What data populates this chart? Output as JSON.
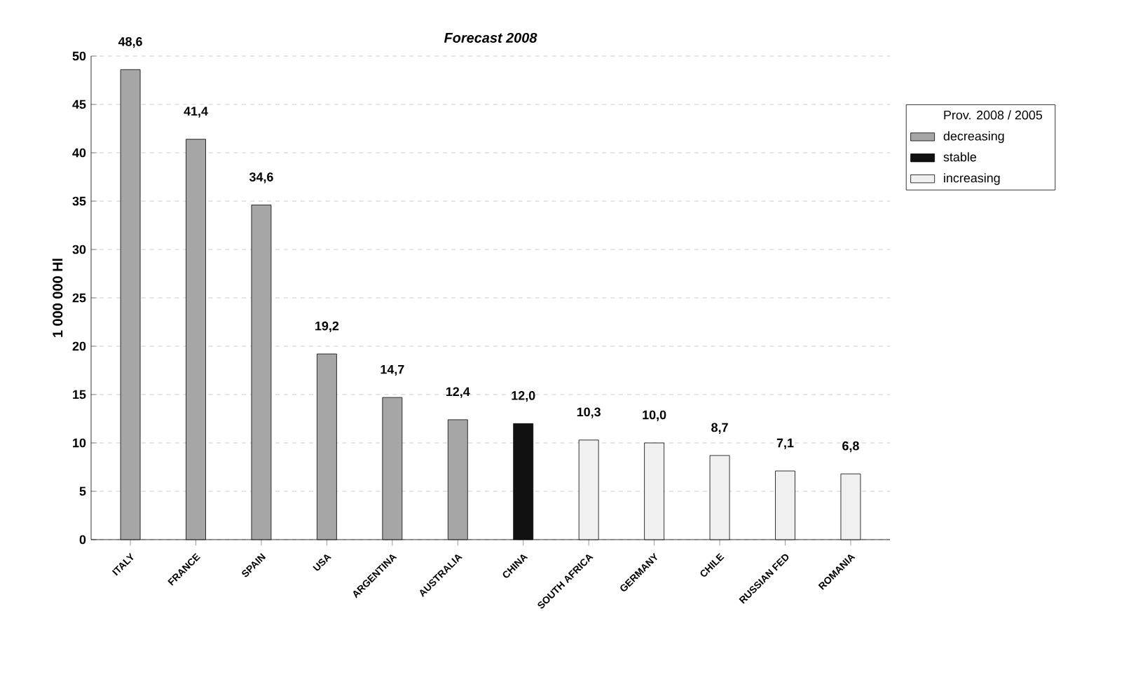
{
  "chart_data": {
    "type": "bar",
    "title": "Forecast 2008",
    "ylabel": "1 000 000 Hl",
    "legend_title": "Prov. 2008 / 2005",
    "categories": [
      "ITALY",
      "FRANCE",
      "SPAIN",
      "USA",
      "ARGENTINA",
      "AUSTRALIA",
      "CHINA",
      "SOUTH AFRICA",
      "GERMANY",
      "CHILE",
      "RUSSIAN FED",
      "ROMANIA"
    ],
    "series": [
      {
        "name": "decreasing",
        "color": "#a6a6a6",
        "values": [
          48.6,
          41.4,
          34.6,
          19.2,
          14.7,
          12.4,
          null,
          null,
          null,
          null,
          null,
          null
        ],
        "value_labels": [
          "48,6",
          "41,4",
          "34,6",
          "19,2",
          "14,7",
          "12,4",
          null,
          null,
          null,
          null,
          null,
          null
        ]
      },
      {
        "name": "stable",
        "color": "#111111",
        "values": [
          null,
          null,
          null,
          null,
          null,
          null,
          12.0,
          null,
          null,
          null,
          null,
          null
        ],
        "value_labels": [
          null,
          null,
          null,
          null,
          null,
          null,
          "12,0",
          null,
          null,
          null,
          null,
          null
        ]
      },
      {
        "name": "increasing",
        "color": "#f0f0f0",
        "values": [
          null,
          null,
          null,
          null,
          null,
          null,
          null,
          10.3,
          10.0,
          8.7,
          7.1,
          6.8
        ],
        "value_labels": [
          null,
          null,
          null,
          null,
          null,
          null,
          null,
          "10,3",
          "10,0",
          "8,7",
          "7,1",
          "6,8"
        ]
      }
    ],
    "ylim": [
      0,
      50
    ],
    "yticks": [
      0,
      5,
      10,
      15,
      20,
      25,
      30,
      35,
      40,
      45,
      50
    ],
    "grid": "y",
    "legend": "right"
  }
}
